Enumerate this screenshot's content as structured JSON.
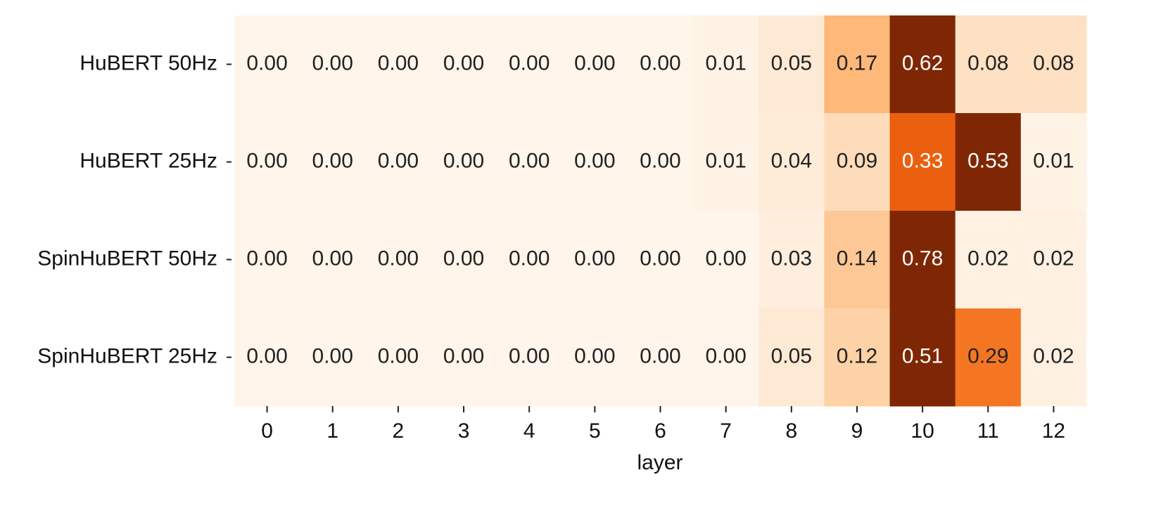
{
  "chart_data": {
    "type": "heatmap",
    "x_label": "layer",
    "categories": [
      "0",
      "1",
      "2",
      "3",
      "4",
      "5",
      "6",
      "7",
      "8",
      "9",
      "10",
      "11",
      "12"
    ],
    "rows": [
      "HuBERT 50Hz",
      "HuBERT 25Hz",
      "SpinHuBERT 50Hz",
      "SpinHuBERT 25Hz"
    ],
    "values": [
      [
        0,
        0,
        0,
        0,
        0,
        0,
        0,
        0.01,
        0.05,
        0.17,
        0.62,
        0.08,
        0.08
      ],
      [
        0,
        0,
        0,
        0,
        0,
        0,
        0,
        0.01,
        0.04,
        0.09,
        0.33,
        0.53,
        0.01
      ],
      [
        0,
        0,
        0,
        0,
        0,
        0,
        0,
        0,
        0.03,
        0.14,
        0.78,
        0.02,
        0.02
      ],
      [
        0,
        0,
        0,
        0,
        0,
        0,
        0,
        0,
        0.05,
        0.12,
        0.51,
        0.29,
        0.02
      ]
    ],
    "value_labels": [
      [
        "0.00",
        "0.00",
        "0.00",
        "0.00",
        "0.00",
        "0.00",
        "0.00",
        "0.01",
        "0.05",
        "0.17",
        "0.62",
        "0.08",
        "0.08"
      ],
      [
        "0.00",
        "0.00",
        "0.00",
        "0.00",
        "0.00",
        "0.00",
        "0.00",
        "0.01",
        "0.04",
        "0.09",
        "0.33",
        "0.53",
        "0.01"
      ],
      [
        "0.00",
        "0.00",
        "0.00",
        "0.00",
        "0.00",
        "0.00",
        "0.00",
        "0.00",
        "0.03",
        "0.14",
        "0.78",
        "0.02",
        "0.02"
      ],
      [
        "0.00",
        "0.00",
        "0.00",
        "0.00",
        "0.00",
        "0.00",
        "0.00",
        "0.00",
        "0.05",
        "0.12",
        "0.51",
        "0.29",
        "0.02"
      ]
    ],
    "colormap": "Oranges",
    "vlim": [
      0,
      0.5
    ]
  }
}
